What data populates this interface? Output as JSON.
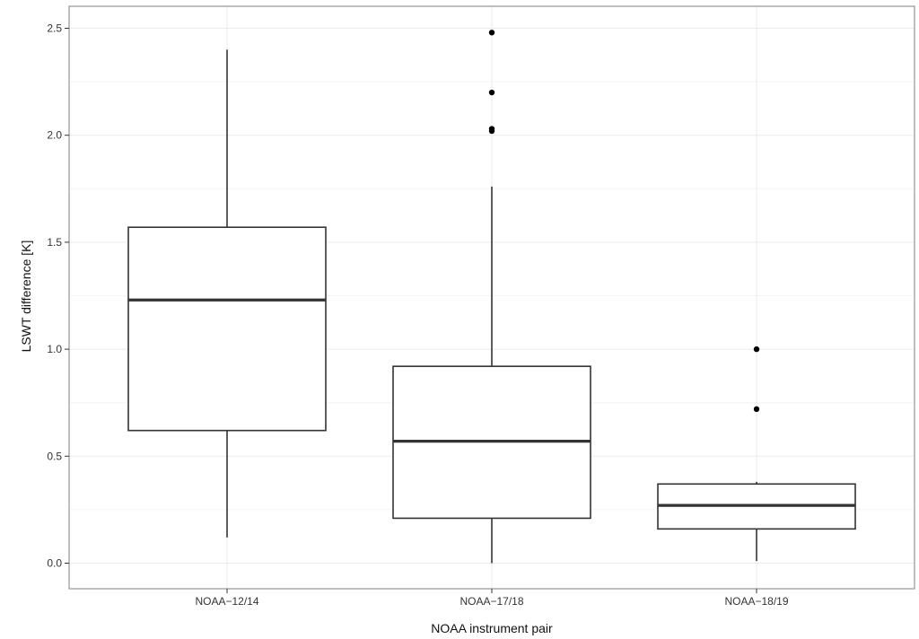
{
  "chart_data": {
    "type": "boxplot",
    "title": "",
    "xlabel": "NOAA instrument pair",
    "ylabel": "LSWT difference [K]",
    "ylim": [
      -0.1,
      2.6
    ],
    "y_ticks": [
      0.0,
      0.5,
      1.0,
      1.5,
      2.0,
      2.5
    ],
    "y_tick_labels": [
      "0.0",
      "0.5",
      "1.0",
      "1.5",
      "2.0",
      "2.5"
    ],
    "grid": true,
    "legend": "none",
    "colors": {
      "box_stroke": "#333333",
      "outlier": "#000000",
      "grid": "#ebebeb",
      "panel_border": "#7f7f7f"
    },
    "categories": [
      "NOAA−12/14",
      "NOAA−17/18",
      "NOAA−18/19"
    ],
    "boxes": [
      {
        "category": "NOAA−12/14",
        "whisker_low": 0.12,
        "q1": 0.62,
        "median": 1.23,
        "q3": 1.57,
        "whisker_high": 2.4,
        "outliers": []
      },
      {
        "category": "NOAA−17/18",
        "whisker_low": 0.0,
        "q1": 0.21,
        "median": 0.57,
        "q3": 0.92,
        "whisker_high": 1.76,
        "outliers": [
          2.02,
          2.03,
          2.2,
          2.48
        ]
      },
      {
        "category": "NOAA−18/19",
        "whisker_low": 0.01,
        "q1": 0.16,
        "median": 0.27,
        "q3": 0.37,
        "whisker_high": 0.38,
        "outliers": [
          0.72,
          1.0
        ]
      }
    ]
  }
}
